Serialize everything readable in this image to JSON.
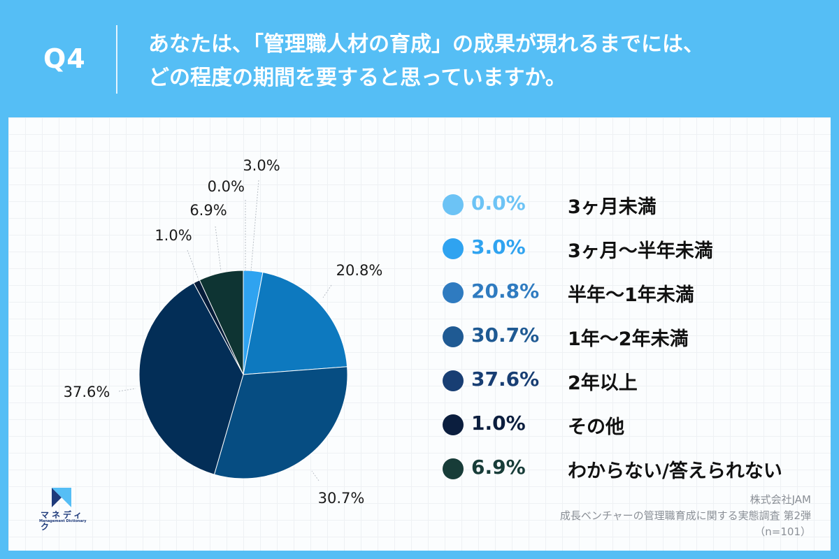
{
  "header": {
    "q_label": "Q4",
    "question_line1": "あなたは、「管理職人材の育成」の成果が現れるまでには、",
    "question_line2": "どの程度の期間を要すると思っていますか。"
  },
  "chart_data": {
    "type": "pie",
    "slices": [
      {
        "label": "3ヶ月未満",
        "value": 0.0,
        "display": "0.0%",
        "color": "#6cc3f5"
      },
      {
        "label": "3ヶ月〜半年未満",
        "value": 3.0,
        "display": "3.0%",
        "color": "#2fa3f0"
      },
      {
        "label": "半年〜1年未満",
        "value": 20.8,
        "display": "20.8%",
        "color": "#0d79bf"
      },
      {
        "label": "1年〜2年未満",
        "value": 30.7,
        "display": "30.7%",
        "color": "#064d82"
      },
      {
        "label": "2年以上",
        "value": 37.6,
        "display": "37.6%",
        "color": "#032e57"
      },
      {
        "label": "その他",
        "value": 1.0,
        "display": "1.0%",
        "color": "#061c3a"
      },
      {
        "label": "わからない/答えられない",
        "value": 6.9,
        "display": "6.9%",
        "color": "#0e3433"
      }
    ],
    "legend_position": "right"
  },
  "legend": [
    {
      "pct": "0.0%",
      "label": "3ヶ月未満",
      "color": "#6cc3f5"
    },
    {
      "pct": "3.0%",
      "label": "3ヶ月〜半年未満",
      "color": "#2fa3f0"
    },
    {
      "pct": "20.8%",
      "label": "半年〜1年未満",
      "color": "#2f7bc0"
    },
    {
      "pct": "30.7%",
      "label": "1年〜2年未満",
      "color": "#1f5a93"
    },
    {
      "pct": "37.6%",
      "label": "2年以上",
      "color": "#183e73"
    },
    {
      "pct": "1.0%",
      "label": "その他",
      "color": "#0b1e3e"
    },
    {
      "pct": "6.9%",
      "label": "わからない/答えられない",
      "color": "#173c38"
    }
  ],
  "source": {
    "line1": "株式会社JAM",
    "line2": "成長ベンチャーの管理職育成に関する実態調査 第2弾",
    "line3": "（n=101）"
  },
  "logo": {
    "name": "マネディク",
    "sub": "Management Dictionary",
    "colors": [
      "#1e3a7a",
      "#55bef5"
    ]
  }
}
